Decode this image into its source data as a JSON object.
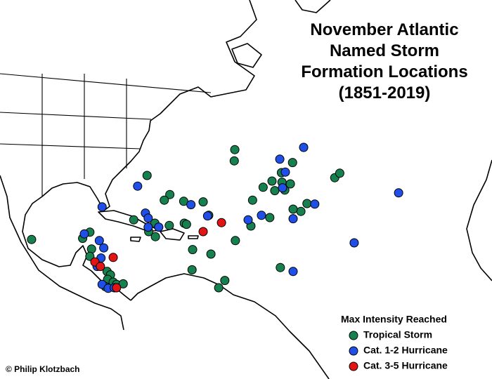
{
  "map": {
    "title_lines": [
      "November Atlantic",
      "Named Storm",
      "Formation Locations",
      "(1851-2019)"
    ],
    "legend_title": "Max Intensity Reached",
    "credit": "© Philip Klotzbach",
    "series": [
      {
        "name": "Tropical Storm",
        "color": "#16804f",
        "locations": [
          [
            35.1,
            -57.2
          ],
          [
            33.1,
            -57.3
          ],
          [
            30.5,
            -73.0
          ],
          [
            27.1,
            -68.9
          ],
          [
            26.1,
            -69.9
          ],
          [
            25.9,
            -66.4
          ],
          [
            25.8,
            -62.9
          ],
          [
            26.1,
            -54.0
          ],
          [
            29.5,
            -50.5
          ],
          [
            28.4,
            -52.1
          ],
          [
            27.8,
            -50.0
          ],
          [
            29.3,
            -48.7
          ],
          [
            27.9,
            -48.2
          ],
          [
            29.0,
            -47.2
          ],
          [
            32.8,
            -46.8
          ],
          [
            31.0,
            -48.8
          ],
          [
            30.1,
            -39.2
          ],
          [
            30.9,
            -38.3
          ],
          [
            25.5,
            -44.2
          ],
          [
            24.1,
            -45.3
          ],
          [
            24.5,
            -46.7
          ],
          [
            23.0,
            -50.9
          ],
          [
            21.5,
            -54.3
          ],
          [
            23.4,
            -61.9
          ],
          [
            22.0,
            -66.3
          ],
          [
            21.6,
            -69.0
          ],
          [
            21.8,
            -65.9
          ],
          [
            22.6,
            -75.4
          ],
          [
            20.5,
            -72.7
          ],
          [
            19.6,
            -71.5
          ],
          [
            18.9,
            -57.1
          ],
          [
            22.0,
            -71.6
          ],
          [
            20.4,
            -83.3
          ],
          [
            19.3,
            -84.6
          ],
          [
            17.4,
            -83.0
          ],
          [
            16.1,
            -83.3
          ],
          [
            19.1,
            -93.8
          ],
          [
            17.3,
            -64.8
          ],
          [
            13.7,
            -64.9
          ],
          [
            16.5,
            -61.5
          ],
          [
            11.8,
            -59.0
          ],
          [
            10.5,
            -60.1
          ],
          [
            14.1,
            -49.0
          ],
          [
            13.4,
            -80.2
          ],
          [
            12.8,
            -79.6
          ],
          [
            12.0,
            -80.1
          ],
          [
            11.5,
            -79.1
          ],
          [
            11.1,
            -78.5
          ],
          [
            11.2,
            -77.3
          ],
          [
            10.7,
            -80.5
          ]
        ]
      },
      {
        "name": "Cat. 1-2 Hurricane",
        "color": "#1f4fe6",
        "locations": [
          [
            35.5,
            -44.8
          ],
          [
            33.4,
            -49.1
          ],
          [
            31.1,
            -48.1
          ],
          [
            28.6,
            -74.7
          ],
          [
            28.3,
            -48.6
          ],
          [
            24.9,
            -81.1
          ],
          [
            25.3,
            -65.1
          ],
          [
            23.3,
            -62.1
          ],
          [
            23.8,
            -73.3
          ],
          [
            22.9,
            -72.8
          ],
          [
            21.3,
            -70.9
          ],
          [
            21.3,
            -72.8
          ],
          [
            23.4,
            -52.4
          ],
          [
            22.6,
            -54.8
          ],
          [
            25.4,
            -42.8
          ],
          [
            22.8,
            -46.7
          ],
          [
            27.4,
            -27.7
          ],
          [
            18.5,
            -35.7
          ],
          [
            13.4,
            -46.7
          ],
          [
            20.1,
            -84.3
          ],
          [
            18.9,
            -81.6
          ],
          [
            17.6,
            -80.8
          ],
          [
            15.8,
            -81.3
          ],
          [
            14.3,
            -82.0
          ],
          [
            11.1,
            -81.1
          ],
          [
            10.4,
            -80.0
          ],
          [
            10.5,
            -78.9
          ]
        ]
      },
      {
        "name": "Cat. 3-5 Hurricane",
        "color": "#e31414",
        "locations": [
          [
            20.5,
            -62.9
          ],
          [
            22.1,
            -59.6
          ],
          [
            15.9,
            -79.1
          ],
          [
            15.1,
            -82.4
          ],
          [
            14.3,
            -81.4
          ],
          [
            10.5,
            -78.5
          ]
        ]
      }
    ]
  }
}
